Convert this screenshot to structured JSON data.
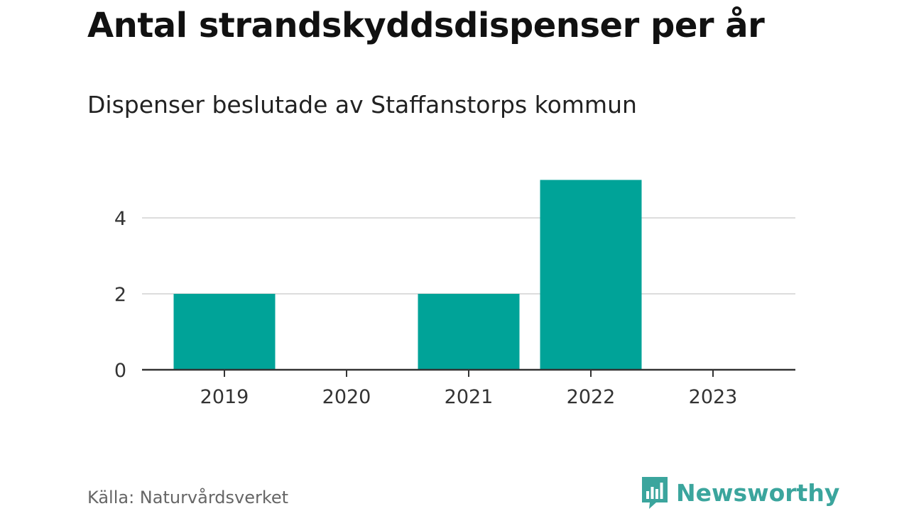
{
  "header": {
    "title": "Antal strandskyddsdispenser per år",
    "subtitle": "Dispenser beslutade av Staffanstorps kommun"
  },
  "footer": {
    "source": "Källa: Naturvårdsverket",
    "brand": "Newsworthy",
    "brand_icon": "bar-chart-speech-bubble-icon"
  },
  "colors": {
    "bar": "#00a398",
    "brand": "#3ba59d",
    "grid": "#dddddd",
    "axis": "#333333"
  },
  "chart_data": {
    "type": "bar",
    "categories": [
      "2019",
      "2020",
      "2021",
      "2022",
      "2023"
    ],
    "values": [
      2,
      0,
      2,
      5,
      0
    ],
    "ylim": [
      0,
      5
    ],
    "yticks": [
      0,
      2,
      4
    ],
    "grid": true,
    "legend": "none"
  }
}
